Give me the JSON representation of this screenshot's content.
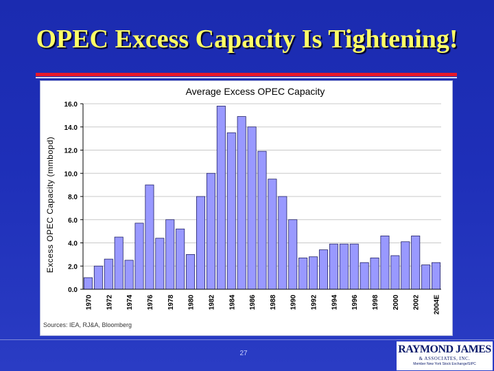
{
  "slide": {
    "title": "OPEC Excess Capacity Is Tightening!",
    "page_number": "27",
    "logo": {
      "name": "RAYMOND JAMES",
      "sub": "& ASSOCIATES, INC.",
      "tagline": "Member New York Stock Exchange/SIPC"
    }
  },
  "chart_data": {
    "type": "bar",
    "title": "Average Excess OPEC Capacity",
    "ylabel": "Excess OPEC Capacity (mmbopd)",
    "xlabel": "",
    "ylim": [
      0,
      16
    ],
    "yticks": [
      "0.0",
      "2.0",
      "4.0",
      "6.0",
      "8.0",
      "10.0",
      "12.0",
      "14.0",
      "16.0"
    ],
    "grid": true,
    "categories": [
      "1970",
      "1971",
      "1972",
      "1973",
      "1974",
      "1975",
      "1976",
      "1977",
      "1978",
      "1979",
      "1980",
      "1981",
      "1982",
      "1983",
      "1984",
      "1985",
      "1986",
      "1987",
      "1988",
      "1989",
      "1990",
      "1991",
      "1992",
      "1993",
      "1994",
      "1995",
      "1996",
      "1997",
      "1998",
      "1999",
      "2000",
      "2001",
      "2002",
      "2003",
      "2004E"
    ],
    "xtick_labels": [
      "1970",
      "1972",
      "1974",
      "1976",
      "1978",
      "1980",
      "1982",
      "1984",
      "1986",
      "1988",
      "1990",
      "1992",
      "1994",
      "1996",
      "1998",
      "2000",
      "2002",
      "2004E"
    ],
    "values": [
      1.0,
      2.0,
      2.6,
      4.5,
      2.5,
      5.7,
      9.0,
      4.4,
      6.0,
      5.2,
      3.0,
      8.0,
      10.0,
      15.8,
      13.5,
      14.9,
      14.0,
      11.9,
      9.5,
      8.0,
      6.0,
      2.7,
      2.8,
      3.4,
      3.9,
      3.9,
      3.9,
      2.3,
      2.7,
      4.6,
      2.9,
      4.1,
      4.6,
      2.1,
      2.3
    ],
    "source": "Sources: IEA, RJ&A, Bloomberg",
    "colors": {
      "bar_fill": "#9999ff",
      "bar_stroke": "#222266",
      "grid": "#c8c8c8",
      "axis": "#000000"
    }
  }
}
